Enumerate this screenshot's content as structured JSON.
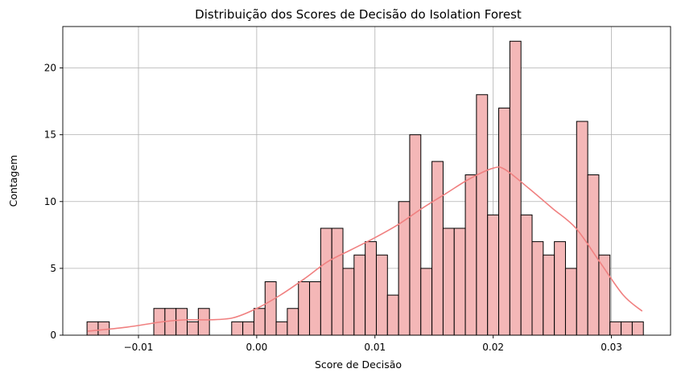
{
  "chart_data": {
    "type": "bar",
    "title": "Distribuição dos Scores de Decisão do Isolation Forest",
    "xlabel": "Score de Decisão",
    "ylabel": "Contagem",
    "xlim": [
      -0.0164,
      0.035
    ],
    "ylim": [
      0,
      23.1
    ],
    "bin_start": -0.01435,
    "bin_width": 0.000941,
    "x_ticks": [
      -0.01,
      0.0,
      0.01,
      0.02,
      0.03
    ],
    "x_tick_labels": [
      "−0.01",
      "0.00",
      "0.01",
      "0.02",
      "0.03"
    ],
    "y_ticks": [
      0,
      5,
      10,
      15,
      20
    ],
    "y_tick_labels": [
      "0",
      "5",
      "10",
      "15",
      "20"
    ],
    "counts": [
      1,
      1,
      0,
      0,
      0,
      0,
      2,
      2,
      2,
      1,
      2,
      0,
      0,
      1,
      1,
      2,
      4,
      1,
      2,
      4,
      4,
      8,
      8,
      5,
      6,
      7,
      6,
      3,
      10,
      15,
      5,
      13,
      8,
      8,
      12,
      18,
      9,
      17,
      22,
      9,
      7,
      6,
      7,
      5,
      16,
      12,
      6,
      1,
      1,
      1
    ],
    "kde": [
      [
        -0.0143,
        0.3
      ],
      [
        -0.011,
        0.6
      ],
      [
        -0.008,
        1.0
      ],
      [
        -0.006,
        1.15
      ],
      [
        -0.004,
        1.15
      ],
      [
        -0.002,
        1.3
      ],
      [
        0.0,
        2.0
      ],
      [
        0.002,
        3.0
      ],
      [
        0.004,
        4.2
      ],
      [
        0.006,
        5.5
      ],
      [
        0.008,
        6.4
      ],
      [
        0.01,
        7.3
      ],
      [
        0.012,
        8.3
      ],
      [
        0.014,
        9.5
      ],
      [
        0.016,
        10.6
      ],
      [
        0.018,
        11.7
      ],
      [
        0.02,
        12.5
      ],
      [
        0.021,
        12.4
      ],
      [
        0.023,
        11.0
      ],
      [
        0.025,
        9.5
      ],
      [
        0.027,
        8.0
      ],
      [
        0.029,
        5.5
      ],
      [
        0.031,
        3.0
      ],
      [
        0.0326,
        1.8
      ]
    ],
    "bar_color": "#f4b7b7",
    "bar_edge_color": "#000000",
    "kde_color": "#f08080",
    "grid": true,
    "legend": "none"
  }
}
